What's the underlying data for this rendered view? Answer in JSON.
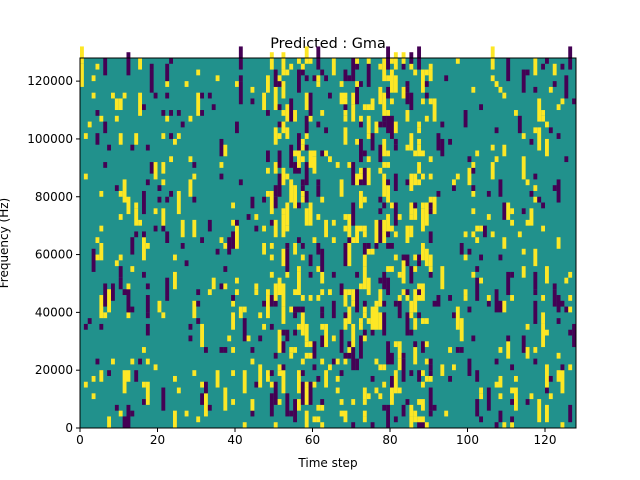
{
  "chart_data": {
    "type": "heatmap",
    "title": "Predicted : Gma",
    "xlabel": "Time step",
    "ylabel": "Frequency (Hz)",
    "xlim": [
      0,
      128
    ],
    "ylim": [
      0,
      128000
    ],
    "x_ticks": [
      "0",
      "20",
      "40",
      "60",
      "80",
      "100",
      "120"
    ],
    "y_ticks": [
      "0",
      "20000",
      "40000",
      "60000",
      "80000",
      "100000",
      "120000"
    ],
    "grid": false,
    "colors": {
      "background": "#21918c",
      "high": "#fde725",
      "low": "#440154"
    },
    "rows": 64,
    "columns": 128
  }
}
